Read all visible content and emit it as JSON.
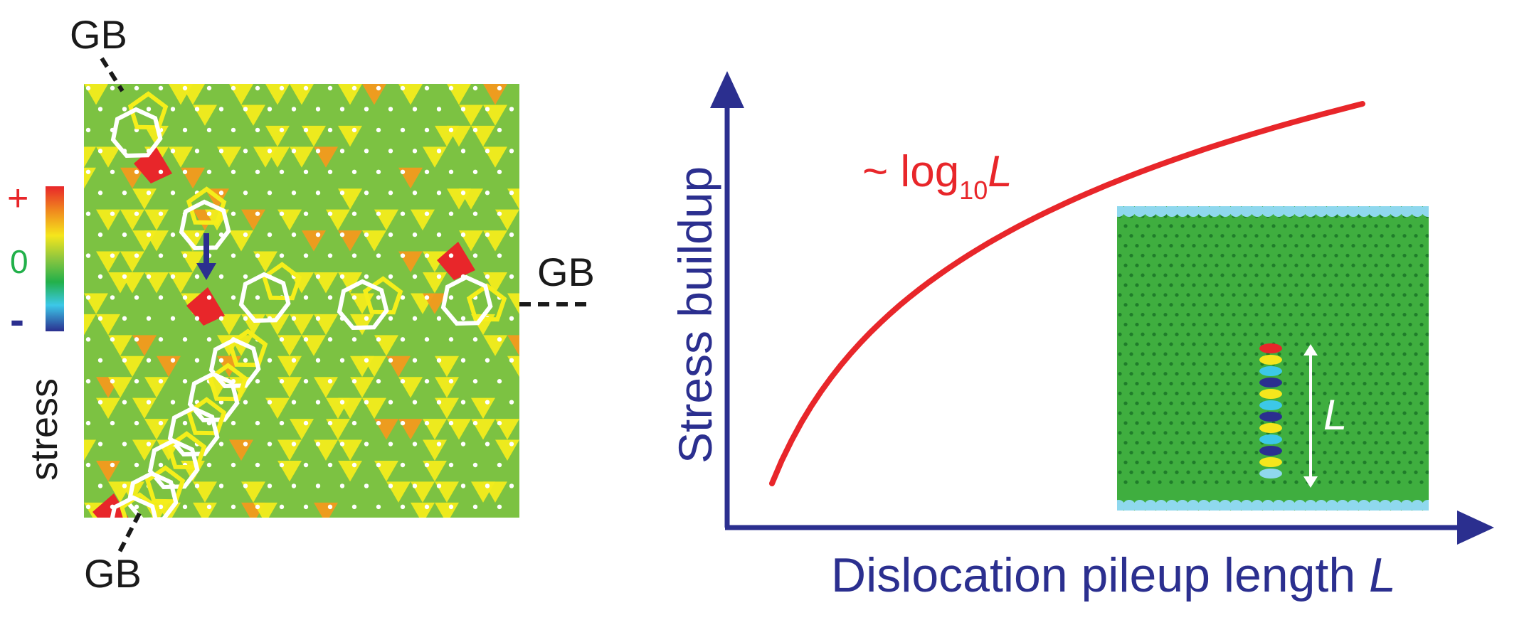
{
  "left_panel": {
    "gb_labels": [
      "GB",
      "GB",
      "GB"
    ],
    "colorbar": {
      "plus_label": "+",
      "zero_label": "0",
      "minus_label": "-",
      "title": "stress",
      "colors": [
        "#e8262a",
        "#f08a1e",
        "#f5e61c",
        "#8cc63f",
        "#22b04a",
        "#3cc8e8",
        "#2b2f8f"
      ]
    },
    "colors": {
      "green": "#7cc242",
      "yellow": "#f3ec1c",
      "orange": "#f39a1e",
      "red": "#e8262a",
      "navy": "#2b2f8f",
      "ring_white": "#ffffff",
      "ring_yellow": "#f5ee1a"
    }
  },
  "right_panel": {
    "y_axis_label": "Stress buildup",
    "x_axis_label_prefix": "Dislocation pileup length ",
    "x_axis_label_var": "L",
    "curve_label_prefix": "~ log",
    "curve_label_sub": "10",
    "curve_label_var": "L",
    "inset_length_label": "L",
    "chart_data": {
      "type": "line",
      "title": "",
      "xlabel": "Dislocation pileup length L",
      "ylabel": "Stress buildup",
      "series": [
        {
          "name": "~ log10 L",
          "function": "log10",
          "x_range": [
            1,
            10
          ]
        }
      ],
      "grid": false,
      "ticks": false
    },
    "colors": {
      "axis": "#2b2f8f",
      "curve": "#e8262a",
      "inset_green": "#3fae3f",
      "inset_cyan": "#8fd8ee"
    }
  }
}
